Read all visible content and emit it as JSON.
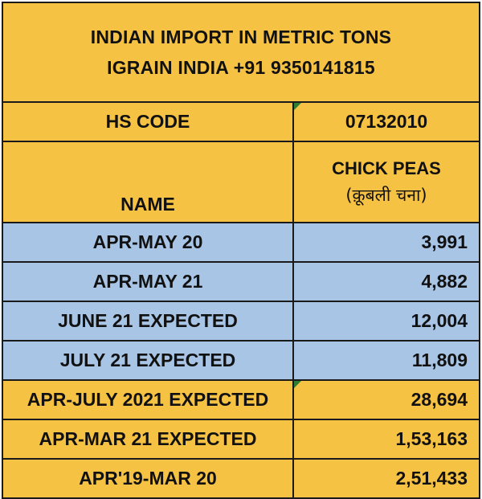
{
  "title": {
    "line1": "INDIAN IMPORT IN METRIC TONS",
    "line2": "IGRAIN INDIA +91 9350141815"
  },
  "header": {
    "hs_code_label": "HS CODE",
    "hs_code_value": "07132010"
  },
  "name_row": {
    "label": "NAME",
    "crop_name": "CHICK PEAS",
    "crop_local": "(क़ूबली चना)"
  },
  "rows": [
    {
      "label": "APR-MAY 20",
      "value": "3,991"
    },
    {
      "label": "APR-MAY 21",
      "value": "4,882"
    },
    {
      "label": "JUNE 21 EXPECTED",
      "value": "12,004"
    },
    {
      "label": "JULY 21 EXPECTED",
      "value": "11,809"
    },
    {
      "label": "APR-JULY 2021 EXPECTED",
      "value": "28,694"
    },
    {
      "label": "APR-MAR 21 EXPECTED",
      "value": "1,53,163"
    },
    {
      "label": "APR'19-MAR 20",
      "value": "2,51,433"
    }
  ],
  "colors": {
    "gold": "#f6c244",
    "blue": "#a9c5e6",
    "border": "#1a1a1a",
    "comment_flag": "#2f7d32"
  }
}
